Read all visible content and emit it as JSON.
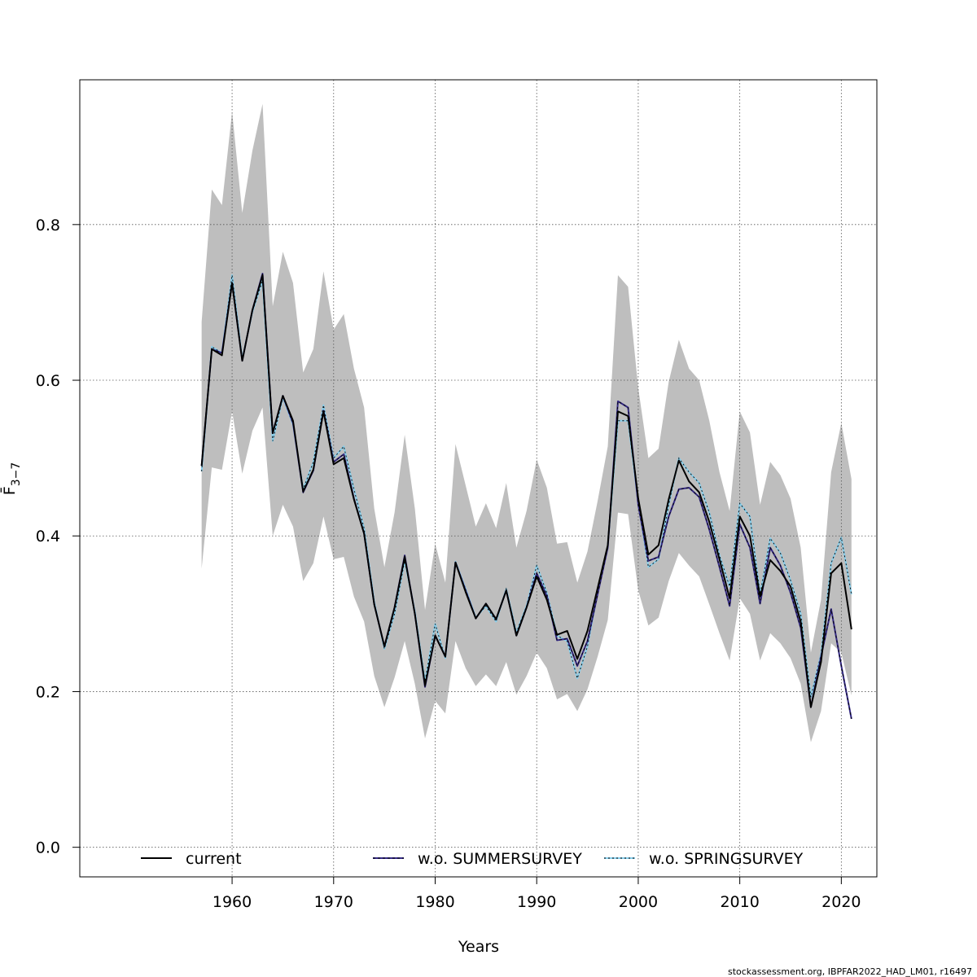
{
  "chart_data": {
    "type": "line",
    "xlabel": "Years",
    "ylabel": "F̄",
    "ylabel_sub": "3−7",
    "xlim": [
      1945,
      2023.5
    ],
    "ylim": [
      -0.038,
      0.986
    ],
    "x_ticks": [
      1960,
      1970,
      1980,
      1990,
      2000,
      2010,
      2020
    ],
    "y_ticks": [
      0.0,
      0.2,
      0.4,
      0.6,
      0.8
    ],
    "y_tick_labels": [
      "0.0",
      "0.2",
      "0.4",
      "0.6",
      "0.8"
    ],
    "grid": true,
    "legend_position": "bottom",
    "x": [
      1957,
      1958,
      1959,
      1960,
      1961,
      1962,
      1963,
      1964,
      1965,
      1966,
      1967,
      1968,
      1969,
      1970,
      1971,
      1972,
      1973,
      1974,
      1975,
      1976,
      1977,
      1978,
      1979,
      1980,
      1981,
      1982,
      1983,
      1984,
      1985,
      1986,
      1987,
      1988,
      1989,
      1990,
      1991,
      1992,
      1993,
      1994,
      1995,
      1996,
      1997,
      1998,
      1999,
      2000,
      2001,
      2002,
      2003,
      2004,
      2005,
      2006,
      2007,
      2008,
      2009,
      2010,
      2011,
      2012,
      2013,
      2014,
      2015,
      2016,
      2017,
      2018,
      2019,
      2020,
      2021
    ],
    "band": {
      "color": "#bebebe",
      "upper": [
        0.675,
        0.845,
        0.825,
        0.945,
        0.815,
        0.895,
        0.955,
        0.695,
        0.765,
        0.725,
        0.61,
        0.64,
        0.74,
        0.665,
        0.685,
        0.615,
        0.565,
        0.435,
        0.36,
        0.43,
        0.53,
        0.435,
        0.305,
        0.39,
        0.34,
        0.518,
        0.465,
        0.412,
        0.442,
        0.41,
        0.468,
        0.385,
        0.432,
        0.498,
        0.462,
        0.39,
        0.392,
        0.34,
        0.38,
        0.445,
        0.515,
        0.735,
        0.72,
        0.59,
        0.5,
        0.512,
        0.598,
        0.652,
        0.615,
        0.6,
        0.548,
        0.482,
        0.432,
        0.56,
        0.533,
        0.44,
        0.495,
        0.478,
        0.448,
        0.385,
        0.25,
        0.318,
        0.482,
        0.545,
        0.473
      ],
      "lower": [
        0.358,
        0.488,
        0.485,
        0.56,
        0.48,
        0.535,
        0.565,
        0.4,
        0.44,
        0.412,
        0.342,
        0.365,
        0.425,
        0.37,
        0.373,
        0.322,
        0.29,
        0.22,
        0.18,
        0.218,
        0.265,
        0.21,
        0.14,
        0.188,
        0.172,
        0.265,
        0.23,
        0.207,
        0.222,
        0.207,
        0.238,
        0.196,
        0.22,
        0.25,
        0.23,
        0.19,
        0.197,
        0.175,
        0.203,
        0.245,
        0.292,
        0.43,
        0.428,
        0.33,
        0.285,
        0.295,
        0.342,
        0.378,
        0.362,
        0.348,
        0.312,
        0.275,
        0.24,
        0.32,
        0.3,
        0.24,
        0.275,
        0.262,
        0.243,
        0.21,
        0.135,
        0.175,
        0.262,
        0.25,
        0.195
      ]
    },
    "series": [
      {
        "name": "current",
        "color": "#000000",
        "values": [
          0.49,
          0.64,
          0.632,
          0.725,
          0.625,
          0.69,
          0.735,
          0.532,
          0.58,
          0.548,
          0.457,
          0.485,
          0.56,
          0.492,
          0.5,
          0.447,
          0.403,
          0.312,
          0.258,
          0.308,
          0.373,
          0.3,
          0.208,
          0.272,
          0.245,
          0.366,
          0.328,
          0.294,
          0.313,
          0.293,
          0.33,
          0.272,
          0.308,
          0.348,
          0.318,
          0.273,
          0.278,
          0.242,
          0.278,
          0.333,
          0.388,
          0.56,
          0.554,
          0.448,
          0.376,
          0.388,
          0.447,
          0.497,
          0.47,
          0.456,
          0.418,
          0.37,
          0.32,
          0.425,
          0.4,
          0.322,
          0.369,
          0.355,
          0.335,
          0.29,
          0.18,
          0.238,
          0.352,
          0.365,
          0.28
        ]
      },
      {
        "name": "w.o. SUMMERSURVEY",
        "color": "#352a87",
        "values": [
          0.49,
          0.64,
          0.635,
          0.725,
          0.625,
          0.69,
          0.737,
          0.532,
          0.58,
          0.545,
          0.456,
          0.484,
          0.561,
          0.495,
          0.505,
          0.448,
          0.403,
          0.312,
          0.258,
          0.308,
          0.375,
          0.3,
          0.206,
          0.272,
          0.245,
          0.366,
          0.33,
          0.294,
          0.313,
          0.293,
          0.33,
          0.272,
          0.308,
          0.352,
          0.323,
          0.266,
          0.268,
          0.233,
          0.265,
          0.325,
          0.385,
          0.573,
          0.565,
          0.44,
          0.368,
          0.373,
          0.425,
          0.46,
          0.462,
          0.45,
          0.408,
          0.36,
          0.31,
          0.415,
          0.385,
          0.313,
          0.385,
          0.362,
          0.327,
          0.282,
          0.18,
          0.245,
          0.306,
          0.233,
          0.165
        ]
      },
      {
        "name": "w.o. SPRINGSURVEY",
        "color": "#87ceeb",
        "values": [
          0.483,
          0.643,
          0.635,
          0.735,
          0.627,
          0.688,
          0.728,
          0.522,
          0.578,
          0.543,
          0.46,
          0.495,
          0.568,
          0.5,
          0.515,
          0.46,
          0.41,
          0.315,
          0.255,
          0.3,
          0.368,
          0.303,
          0.213,
          0.287,
          0.243,
          0.367,
          0.332,
          0.295,
          0.31,
          0.29,
          0.332,
          0.276,
          0.31,
          0.362,
          0.327,
          0.272,
          0.265,
          0.217,
          0.258,
          0.328,
          0.388,
          0.548,
          0.548,
          0.443,
          0.36,
          0.37,
          0.44,
          0.5,
          0.482,
          0.468,
          0.43,
          0.375,
          0.335,
          0.442,
          0.425,
          0.325,
          0.397,
          0.378,
          0.343,
          0.3,
          0.193,
          0.248,
          0.365,
          0.398,
          0.325
        ]
      }
    ]
  },
  "legend": {
    "items": [
      {
        "label": "current",
        "color": "#000000"
      },
      {
        "label": "w.o. SUMMERSURVEY",
        "color": "#352a87"
      },
      {
        "label": "w.o. SPRINGSURVEY",
        "color": "#87ceeb"
      }
    ]
  },
  "footer": {
    "text": "stockassessment.org, IBPFAR2022_HAD_LM01, r16497"
  }
}
